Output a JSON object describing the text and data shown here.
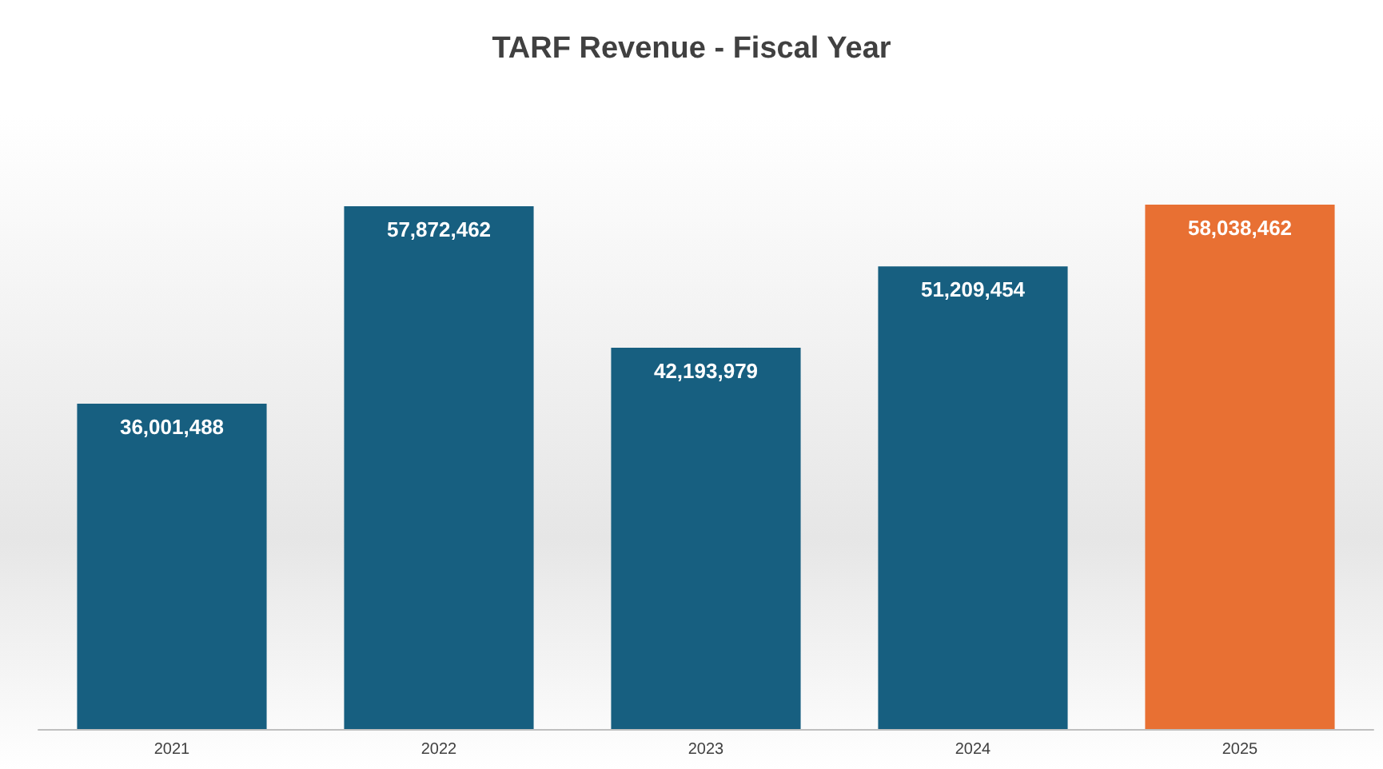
{
  "chart_data": {
    "type": "bar",
    "title": "TARF Revenue - Fiscal Year",
    "categories": [
      "2021",
      "2022",
      "2023",
      "2024",
      "2025"
    ],
    "values": [
      36001488,
      57872462,
      42193979,
      51209454,
      58038462
    ],
    "value_labels": [
      "36,001,488",
      "57,872,462",
      "42,193,979",
      "51,209,454",
      "58,038,462"
    ],
    "colors": [
      "#175f80",
      "#175f80",
      "#175f80",
      "#175f80",
      "#e87033"
    ]
  }
}
